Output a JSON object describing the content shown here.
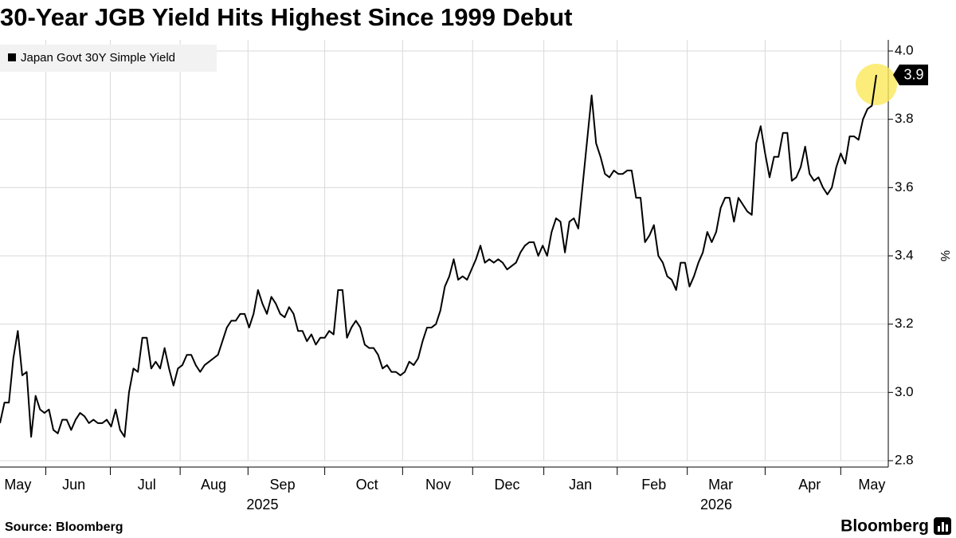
{
  "chart_data": {
    "type": "line",
    "title": "30-Year JGB Yield Hits Highest Since 1999 Debut",
    "y_label": "%",
    "source": "Source: Bloomberg",
    "brand": "Bloomberg",
    "last_value_label": "3.9",
    "legend": "top-left",
    "grid": true,
    "ylim": [
      2.8,
      4.0
    ],
    "yticks": [
      2.8,
      {
        "value": 3.0,
        "label": "3.0"
      },
      3.2,
      3.4,
      3.6,
      3.8,
      {
        "value": 4.0,
        "label": "4.0"
      }
    ],
    "xticks": [
      {
        "value": 4,
        "label": "May"
      },
      {
        "value": 16.6,
        "label": "Jun"
      },
      {
        "value": 33,
        "label": "Jul"
      },
      {
        "value": 48,
        "label": "Aug"
      },
      {
        "value": 63.5,
        "label": "Sep"
      },
      {
        "value": 82.5,
        "label": "Oct"
      },
      {
        "value": 98.5,
        "label": "Nov"
      },
      {
        "value": 114,
        "label": "Dec"
      },
      {
        "value": 130.5,
        "label": "Jan"
      },
      {
        "value": 147,
        "label": "Feb"
      },
      {
        "value": 162,
        "label": "Mar"
      },
      {
        "value": 182,
        "label": "Apr"
      },
      {
        "value": 196,
        "label": "May"
      }
    ],
    "year_labels": [
      {
        "value": 59,
        "label": "2025"
      },
      {
        "value": 161,
        "label": "2026"
      }
    ],
    "series": [
      {
        "name": "Japan Govt 30Y Simple Yield",
        "color": "#000000",
        "values": [
          2.91,
          2.97,
          2.97,
          3.1,
          3.18,
          3.05,
          3.06,
          2.87,
          2.99,
          2.95,
          2.94,
          2.95,
          2.89,
          2.88,
          2.92,
          2.92,
          2.89,
          2.92,
          2.94,
          2.93,
          2.91,
          2.92,
          2.91,
          2.91,
          2.92,
          2.9,
          2.95,
          2.89,
          2.87,
          3.0,
          3.07,
          3.06,
          3.16,
          3.16,
          3.07,
          3.09,
          3.07,
          3.13,
          3.07,
          3.02,
          3.07,
          3.08,
          3.11,
          3.11,
          3.08,
          3.06,
          3.08,
          3.09,
          3.1,
          3.11,
          3.15,
          3.19,
          3.21,
          3.21,
          3.23,
          3.23,
          3.19,
          3.23,
          3.3,
          3.26,
          3.23,
          3.28,
          3.26,
          3.23,
          3.22,
          3.25,
          3.23,
          3.18,
          3.18,
          3.15,
          3.17,
          3.14,
          3.16,
          3.16,
          3.18,
          3.17,
          3.3,
          3.3,
          3.16,
          3.19,
          3.21,
          3.19,
          3.14,
          3.13,
          3.13,
          3.11,
          3.07,
          3.08,
          3.06,
          3.06,
          3.05,
          3.06,
          3.09,
          3.08,
          3.1,
          3.15,
          3.19,
          3.19,
          3.2,
          3.24,
          3.31,
          3.34,
          3.39,
          3.33,
          3.34,
          3.33,
          3.36,
          3.39,
          3.43,
          3.38,
          3.39,
          3.38,
          3.39,
          3.38,
          3.36,
          3.37,
          3.38,
          3.41,
          3.43,
          3.44,
          3.44,
          3.4,
          3.43,
          3.4,
          3.47,
          3.51,
          3.5,
          3.41,
          3.5,
          3.51,
          3.48,
          3.61,
          3.74,
          3.87,
          3.73,
          3.69,
          3.64,
          3.63,
          3.65,
          3.64,
          3.64,
          3.65,
          3.65,
          3.57,
          3.57,
          3.44,
          3.46,
          3.49,
          3.4,
          3.38,
          3.34,
          3.33,
          3.3,
          3.38,
          3.38,
          3.31,
          3.34,
          3.38,
          3.41,
          3.47,
          3.44,
          3.47,
          3.54,
          3.57,
          3.57,
          3.5,
          3.57,
          3.55,
          3.53,
          3.52,
          3.73,
          3.78,
          3.7,
          3.63,
          3.69,
          3.69,
          3.76,
          3.76,
          3.62,
          3.63,
          3.66,
          3.72,
          3.64,
          3.62,
          3.63,
          3.6,
          3.58,
          3.6,
          3.66,
          3.7,
          3.67,
          3.75,
          3.75,
          3.74,
          3.8,
          3.83,
          3.84,
          3.93
        ]
      }
    ]
  }
}
